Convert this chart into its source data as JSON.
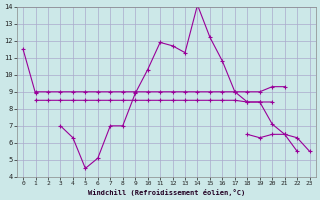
{
  "background_color": "#cce8e8",
  "grid_color": "#aaaacc",
  "line_color": "#990099",
  "xlabel": "Windchill (Refroidissement éolien,°C)",
  "ylim": [
    4,
    14
  ],
  "xlim": [
    -0.5,
    23.5
  ],
  "yticks": [
    4,
    5,
    6,
    7,
    8,
    9,
    10,
    11,
    12,
    13,
    14
  ],
  "xticks": [
    0,
    1,
    2,
    3,
    4,
    5,
    6,
    7,
    8,
    9,
    10,
    11,
    12,
    13,
    14,
    15,
    16,
    17,
    18,
    19,
    20,
    21,
    22,
    23
  ],
  "x": [
    0,
    1,
    2,
    3,
    4,
    5,
    6,
    7,
    8,
    9,
    10,
    11,
    12,
    13,
    14,
    15,
    16,
    17,
    18,
    19,
    20,
    21,
    22,
    23
  ],
  "s1": [
    11.5,
    8.9,
    null,
    7.0,
    6.3,
    4.5,
    5.1,
    7.0,
    7.0,
    8.9,
    10.3,
    11.9,
    11.7,
    11.3,
    14.1,
    12.2,
    10.8,
    9.0,
    8.4,
    8.4,
    7.1,
    6.5,
    5.5,
    null
  ],
  "s2": [
    null,
    9.0,
    9.0,
    9.0,
    9.0,
    9.0,
    9.0,
    9.0,
    9.0,
    9.0,
    9.0,
    9.0,
    9.0,
    9.0,
    9.0,
    9.0,
    9.0,
    9.0,
    9.0,
    9.0,
    9.3,
    9.3,
    null,
    null
  ],
  "s3": [
    null,
    8.5,
    8.5,
    8.5,
    8.5,
    8.5,
    8.5,
    8.5,
    8.5,
    8.5,
    8.5,
    8.5,
    8.5,
    8.5,
    8.5,
    8.5,
    8.5,
    8.5,
    8.4,
    8.4,
    8.4,
    null,
    null,
    null
  ],
  "s4": [
    null,
    null,
    null,
    null,
    null,
    null,
    null,
    null,
    null,
    null,
    null,
    null,
    null,
    null,
    null,
    null,
    null,
    null,
    6.5,
    6.3,
    6.5,
    6.5,
    6.3,
    5.5
  ]
}
